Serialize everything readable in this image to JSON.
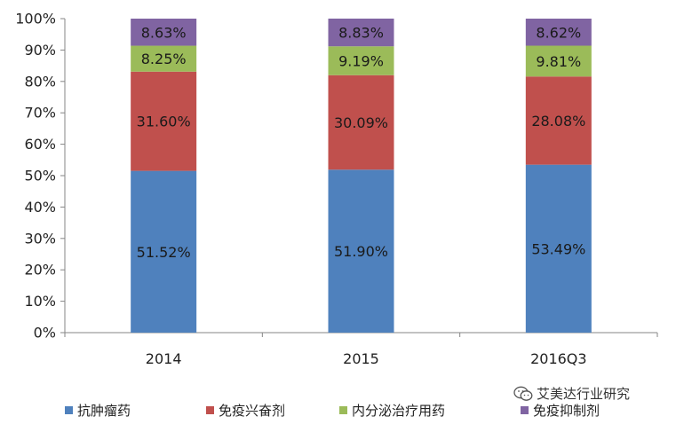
{
  "chart_data": {
    "type": "bar",
    "stacked": true,
    "categories": [
      "2014",
      "2015",
      "2016Q3"
    ],
    "series": [
      {
        "name": "抗肿瘤药",
        "values": [
          51.52,
          51.9,
          53.49
        ],
        "labels": [
          "51.52%",
          "51.90%",
          "53.49%"
        ],
        "color": "#4F81BD"
      },
      {
        "name": "免疫兴奋剂",
        "values": [
          31.6,
          30.09,
          28.08
        ],
        "labels": [
          "31.60%",
          "30.09%",
          "28.08%"
        ],
        "color": "#C0504D"
      },
      {
        "name": "内分泌治疗用药",
        "values": [
          8.25,
          9.19,
          9.81
        ],
        "labels": [
          "8.25%",
          "9.19%",
          "9.81%"
        ],
        "color": "#9BBB59"
      },
      {
        "name": "免疫抑制剂",
        "values": [
          8.63,
          8.83,
          8.62
        ],
        "labels": [
          "8.63%",
          "8.83%",
          "8.62%"
        ],
        "color": "#8064A2"
      }
    ],
    "yticks": [
      "0%",
      "10%",
      "20%",
      "30%",
      "40%",
      "50%",
      "60%",
      "70%",
      "80%",
      "90%",
      "100%"
    ],
    "ylim": [
      0,
      100
    ],
    "grid": false,
    "legend_position": "bottom"
  },
  "watermark": {
    "text": "艾美达行业研究",
    "icon": "wechat-icon"
  }
}
